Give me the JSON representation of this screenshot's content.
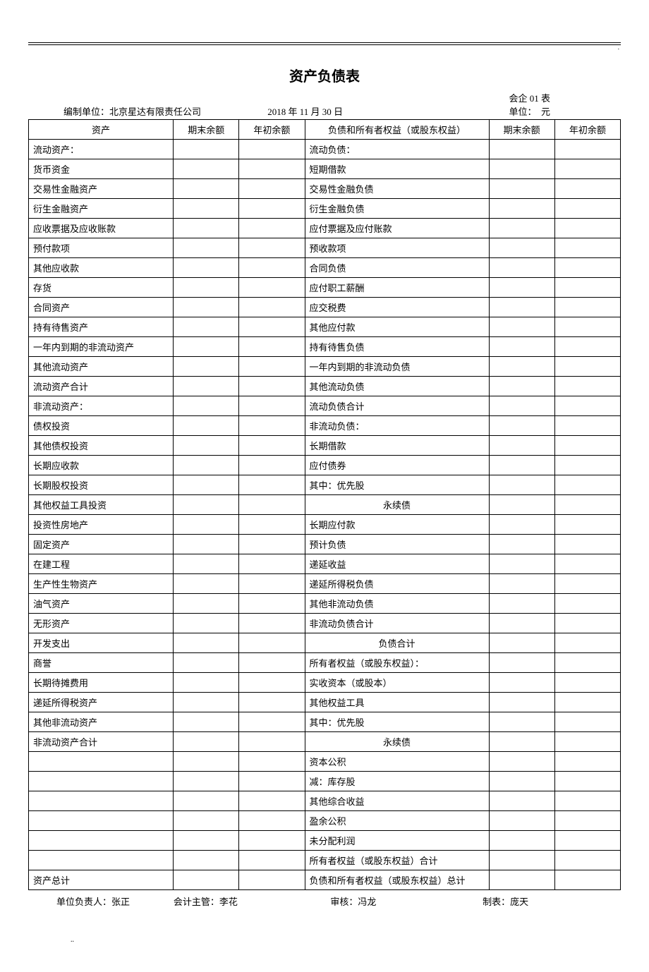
{
  "title": "资产负债表",
  "formNo": "会企 01 表",
  "meta": {
    "orgLabel": "编制单位：",
    "orgName": "北京星达有限责任公司",
    "date": "2018 年 11 月 30 日",
    "unitLabel": "单位：",
    "unitValue": "元"
  },
  "headers": {
    "asset": "资产",
    "endBal": "期末余额",
    "beginBal": "年初余额",
    "liab": "负债和所有者权益（或股东权益）"
  },
  "rows": [
    {
      "a": "流动资产：",
      "ai": 0,
      "l": "流动负债：",
      "li": 0
    },
    {
      "a": "货币资金",
      "ai": 1,
      "l": "短期借款",
      "li": 1
    },
    {
      "a": "交易性金融资产",
      "ai": 1,
      "l": "交易性金融负债",
      "li": 1
    },
    {
      "a": "衍生金融资产",
      "ai": 1,
      "l": "衍生金融负债",
      "li": 1
    },
    {
      "a": "应收票据及应收账款",
      "ai": 1,
      "l": "应付票据及应付账款",
      "li": 1
    },
    {
      "a": "预付款项",
      "ai": 1,
      "l": "预收款项",
      "li": 1
    },
    {
      "a": "其他应收款",
      "ai": 1,
      "l": "合同负债",
      "li": 1
    },
    {
      "a": "存货",
      "ai": 1,
      "l": "应付职工薪酬",
      "li": 1
    },
    {
      "a": "合同资产",
      "ai": 1,
      "l": "应交税费",
      "li": 1
    },
    {
      "a": "持有待售资产",
      "ai": 1,
      "l": "其他应付款",
      "li": 1
    },
    {
      "a": "一年内到期的非流动资产",
      "ai": 1,
      "l": "持有待售负债",
      "li": 1
    },
    {
      "a": "其他流动资产",
      "ai": 1,
      "l": "一年内到期的非流动负债",
      "li": 1
    },
    {
      "a": "流动资产合计",
      "ai": 1,
      "l": "其他流动负债",
      "li": 1
    },
    {
      "a": "非流动资产：",
      "ai": 0,
      "l": "流动负债合计",
      "li": 1
    },
    {
      "a": "债权投资",
      "ai": 1,
      "l": "非流动负债：",
      "li": 0
    },
    {
      "a": "其他债权投资",
      "ai": 1,
      "l": "长期借款",
      "li": 1
    },
    {
      "a": "长期应收款",
      "ai": 1,
      "l": "应付债券",
      "li": 1
    },
    {
      "a": "长期股权投资",
      "ai": 1,
      "l": "其中：优先股",
      "li": 1
    },
    {
      "a": "其他权益工具投资",
      "ai": 1,
      "l": "永续债",
      "li": 2,
      "lc": true
    },
    {
      "a": "投资性房地产",
      "ai": 1,
      "l": "长期应付款",
      "li": 1
    },
    {
      "a": "固定资产",
      "ai": 1,
      "l": "预计负债",
      "li": 1
    },
    {
      "a": "在建工程",
      "ai": 1,
      "l": "递延收益",
      "li": 1
    },
    {
      "a": "生产性生物资产",
      "ai": 1,
      "l": "递延所得税负债",
      "li": 1
    },
    {
      "a": "油气资产",
      "ai": 1,
      "l": "其他非流动负债",
      "li": 1
    },
    {
      "a": "无形资产",
      "ai": 1,
      "l": "非流动负债合计",
      "li": 1
    },
    {
      "a": "开发支出",
      "ai": 1,
      "l": "负债合计",
      "li": 0,
      "lc": true
    },
    {
      "a": "商誉",
      "ai": 1,
      "l": "所有者权益（或股东权益）：",
      "li": 0
    },
    {
      "a": "长期待摊费用",
      "ai": 1,
      "l": "实收资本（或股本）",
      "li": 1
    },
    {
      "a": "递延所得税资产",
      "ai": 1,
      "l": "其他权益工具",
      "li": 1
    },
    {
      "a": "其他非流动资产",
      "ai": 1,
      "l": "其中：优先股",
      "li": 1
    },
    {
      "a": "非流动资产合计",
      "ai": 1,
      "l": "永续债",
      "li": 2,
      "lc": true
    },
    {
      "a": "",
      "ai": 1,
      "l": "资本公积",
      "li": 1
    },
    {
      "a": "",
      "ai": 1,
      "l": "减：库存股",
      "li": 1
    },
    {
      "a": "",
      "ai": 1,
      "l": "其他综合收益",
      "li": 1
    },
    {
      "a": "",
      "ai": 1,
      "l": "盈余公积",
      "li": 1
    },
    {
      "a": "",
      "ai": 1,
      "l": "未分配利润",
      "li": 1
    },
    {
      "a": "",
      "ai": 1,
      "l": "所有者权益（或股东权益）合计",
      "li": 1
    },
    {
      "a": "资产总计",
      "ai": 1,
      "l": "负债和所有者权益（或股东权益）总计",
      "li": 1
    }
  ],
  "footer": {
    "head": "单位负责人：张正",
    "acct": "会计主管：李花",
    "review": "审核：冯龙",
    "prep": "制表：庞天"
  },
  "pageDots": ".."
}
